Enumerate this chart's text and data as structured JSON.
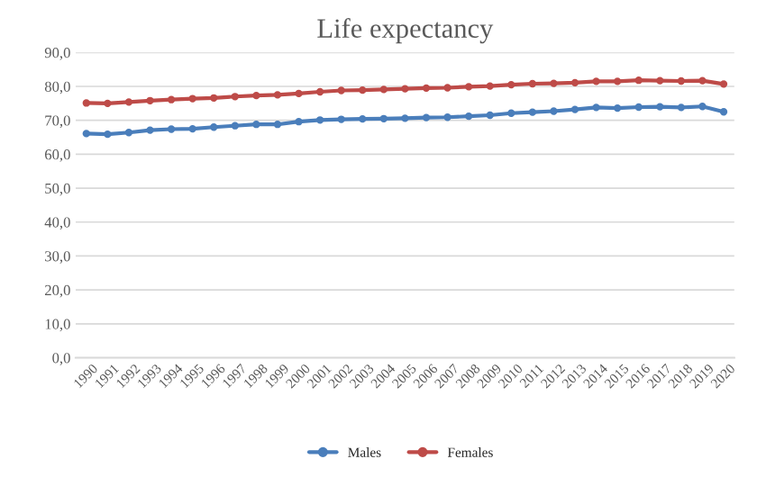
{
  "chart_data": {
    "type": "line",
    "title": "Life expectancy",
    "categories": [
      "1990",
      "1991",
      "1992",
      "1993",
      "1994",
      "1995",
      "1996",
      "1997",
      "1998",
      "1999",
      "2000",
      "2001",
      "2002",
      "2003",
      "2004",
      "2005",
      "2006",
      "2007",
      "2008",
      "2009",
      "2010",
      "2011",
      "2012",
      "2013",
      "2014",
      "2015",
      "2016",
      "2017",
      "2018",
      "2019",
      "2020"
    ],
    "series": [
      {
        "name": "Males",
        "color": "#4a7ebb",
        "values": [
          66.1,
          65.9,
          66.4,
          67.1,
          67.4,
          67.5,
          68.0,
          68.4,
          68.8,
          68.8,
          69.6,
          70.1,
          70.3,
          70.4,
          70.5,
          70.6,
          70.8,
          70.9,
          71.2,
          71.5,
          72.1,
          72.4,
          72.7,
          73.2,
          73.8,
          73.6,
          73.9,
          74.0,
          73.8,
          74.1,
          72.5
        ]
      },
      {
        "name": "Females",
        "color": "#be4b48",
        "values": [
          75.1,
          75.0,
          75.4,
          75.8,
          76.1,
          76.4,
          76.6,
          77.0,
          77.3,
          77.5,
          77.9,
          78.4,
          78.8,
          78.9,
          79.1,
          79.3,
          79.5,
          79.6,
          79.9,
          80.1,
          80.5,
          80.8,
          80.9,
          81.1,
          81.5,
          81.5,
          81.8,
          81.7,
          81.6,
          81.7,
          80.7
        ]
      }
    ],
    "ylim": [
      0,
      90
    ],
    "yticks": [
      {
        "value": 0,
        "label": "0,0"
      },
      {
        "value": 10,
        "label": "10,0"
      },
      {
        "value": 20,
        "label": "20,0"
      },
      {
        "value": 30,
        "label": "30,0"
      },
      {
        "value": 40,
        "label": "40,0"
      },
      {
        "value": 50,
        "label": "50,0"
      },
      {
        "value": 60,
        "label": "60,0"
      },
      {
        "value": 70,
        "label": "70,0"
      },
      {
        "value": 80,
        "label": "80,0"
      },
      {
        "value": 90,
        "label": "90,0"
      }
    ],
    "grid": "y",
    "legend": "bottom",
    "marker": "circle",
    "line_style": "solid"
  }
}
